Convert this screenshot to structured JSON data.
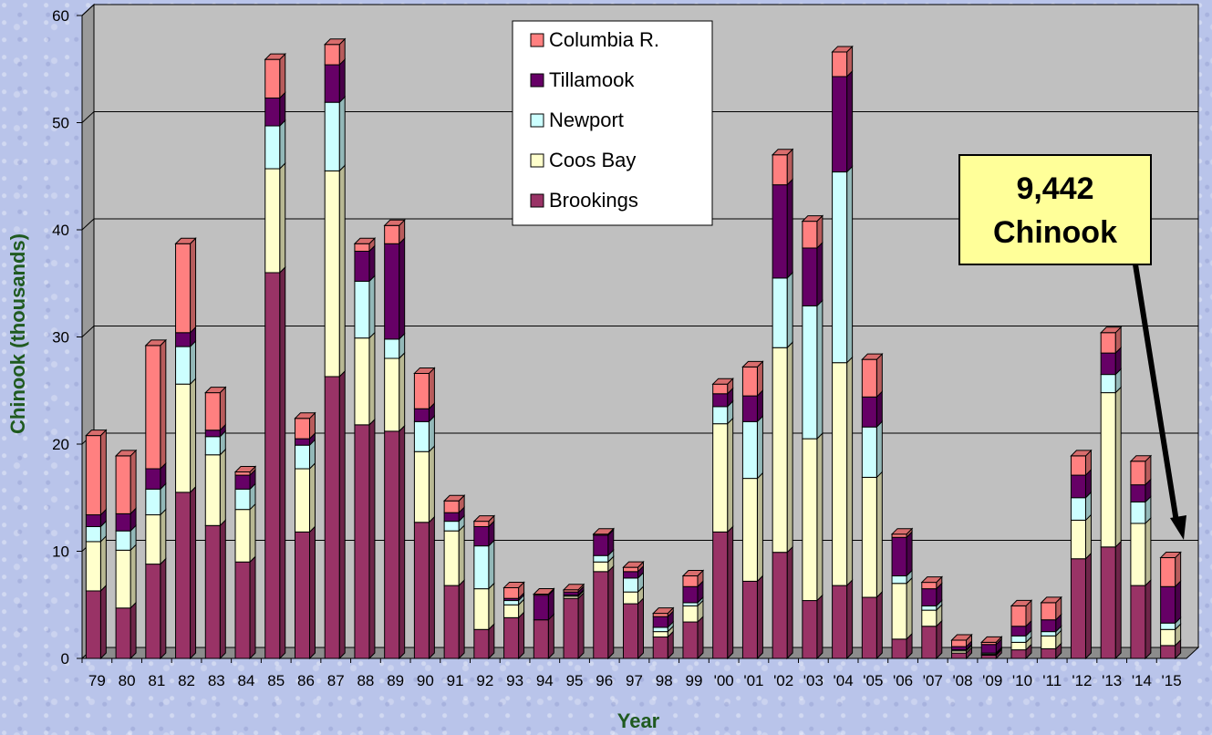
{
  "chart_data": {
    "type": "bar",
    "stacked": true,
    "three_d": true,
    "categories": [
      "79",
      "80",
      "81",
      "82",
      "83",
      "84",
      "85",
      "86",
      "87",
      "88",
      "89",
      "90",
      "91",
      "92",
      "93",
      "94",
      "95",
      "96",
      "97",
      "98",
      "99",
      "'00",
      "'01",
      "'02",
      "'03",
      "'04",
      "'05",
      "'06",
      "'07",
      "'08",
      "'09",
      "'10",
      "'11",
      "'12",
      "'13",
      "'14",
      "'15"
    ],
    "series": [
      {
        "name": "Brookings",
        "color": "#993366",
        "values": [
          6.3,
          4.7,
          8.8,
          15.5,
          12.4,
          9.0,
          36.0,
          11.8,
          26.3,
          21.8,
          21.2,
          12.7,
          6.8,
          2.7,
          3.8,
          3.6,
          5.6,
          8.1,
          5.1,
          2.0,
          3.4,
          11.8,
          7.2,
          9.9,
          5.4,
          6.8,
          5.7,
          1.8,
          3.0,
          0.5,
          0.3,
          0.8,
          0.9,
          9.3,
          10.4,
          6.8,
          1.2
        ]
      },
      {
        "name": "Coos Bay",
        "color": "#ffffcc",
        "values": [
          4.6,
          5.4,
          4.6,
          10.1,
          6.6,
          4.9,
          9.7,
          5.9,
          19.2,
          8.1,
          6.8,
          6.6,
          5.1,
          3.8,
          1.2,
          0.0,
          0.2,
          0.9,
          1.1,
          0.5,
          1.5,
          10.1,
          9.6,
          19.1,
          15.1,
          20.8,
          11.2,
          5.2,
          1.5,
          0.2,
          0.1,
          0.7,
          1.2,
          3.6,
          14.4,
          5.8,
          1.5
        ]
      },
      {
        "name": "Newport",
        "color": "#ccffff",
        "values": [
          1.4,
          1.8,
          2.4,
          3.5,
          1.7,
          1.9,
          4.0,
          2.2,
          6.4,
          5.3,
          1.8,
          2.8,
          0.9,
          4.0,
          0.4,
          0.0,
          0.1,
          0.6,
          1.3,
          0.4,
          0.3,
          1.6,
          5.3,
          6.5,
          12.4,
          17.8,
          4.7,
          0.7,
          0.4,
          0.1,
          0.1,
          0.6,
          0.4,
          2.1,
          1.7,
          2.0,
          0.6
        ]
      },
      {
        "name": "Tillamook",
        "color": "#660066",
        "values": [
          1.1,
          1.6,
          1.9,
          1.3,
          0.6,
          1.3,
          2.6,
          0.6,
          3.5,
          2.8,
          8.9,
          1.2,
          0.8,
          1.8,
          0.2,
          2.3,
          0.3,
          1.9,
          0.6,
          1.0,
          1.5,
          1.2,
          2.4,
          8.7,
          5.4,
          8.9,
          2.8,
          3.6,
          1.6,
          0.3,
          0.8,
          0.9,
          1.1,
          2.1,
          2.0,
          1.6,
          3.4
        ]
      },
      {
        "name": "Columbia R.",
        "color": "#ff8080",
        "values": [
          7.4,
          5.4,
          11.5,
          8.3,
          3.5,
          0.3,
          3.6,
          1.9,
          1.9,
          0.7,
          1.7,
          3.3,
          1.1,
          0.5,
          1.0,
          0.1,
          0.2,
          0.1,
          0.4,
          0.3,
          1.0,
          0.9,
          2.7,
          2.8,
          2.5,
          2.3,
          3.5,
          0.3,
          0.6,
          0.6,
          0.2,
          1.9,
          1.6,
          1.8,
          1.9,
          2.2,
          2.7
        ]
      }
    ],
    "xlabel": "Year",
    "ylabel": "Chinook (thousands)",
    "ylim": [
      0,
      60
    ],
    "yticks": [
      0,
      10,
      20,
      30,
      40,
      50,
      60
    ],
    "grid": true,
    "legend_position": "top-center",
    "annotation": {
      "line1": "9,442",
      "line2": "Chinook",
      "target_category": "'15"
    }
  }
}
